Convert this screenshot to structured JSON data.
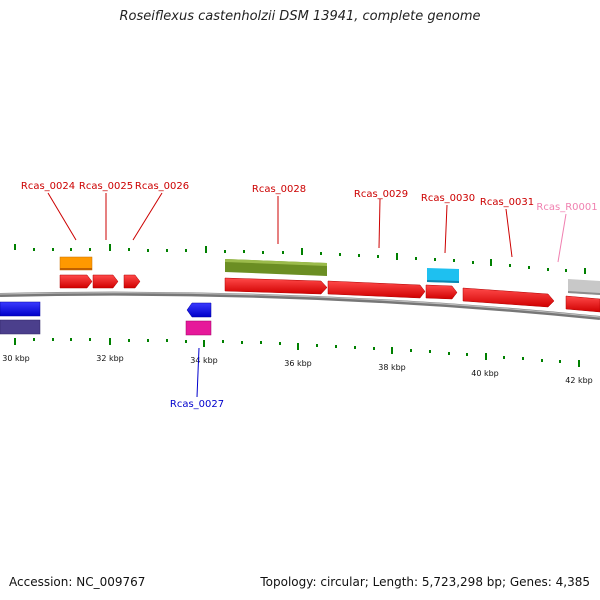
{
  "title": "Roseiflexus castenholzii DSM 13941, complete genome",
  "accession": "Accession: NC_009767",
  "summary": "Topology: circular; Length: 5,723,298 bp; Genes: 4,385",
  "colors": {
    "label_red": "#cc0000",
    "label_blue": "#0000cc",
    "label_pink": "#f080b0",
    "tick": "#008000",
    "backbone": "#888888"
  },
  "scale_labels": [
    "30 kbp",
    "32 kbp",
    "34 kbp",
    "36 kbp",
    "38 kbp",
    "40 kbp",
    "42 kbp"
  ],
  "gene_labels": [
    {
      "text": "Rcas_0024",
      "color": "red"
    },
    {
      "text": "Rcas_0025",
      "color": "red"
    },
    {
      "text": "Rcas_0026",
      "color": "red"
    },
    {
      "text": "Rcas_0028",
      "color": "red"
    },
    {
      "text": "Rcas_0029",
      "color": "red"
    },
    {
      "text": "Rcas_0030",
      "color": "red"
    },
    {
      "text": "Rcas_0031",
      "color": "red"
    },
    {
      "text": "Rcas_R0001",
      "color": "pink"
    },
    {
      "text": "Rcas_0027",
      "color": "blue"
    }
  ]
}
